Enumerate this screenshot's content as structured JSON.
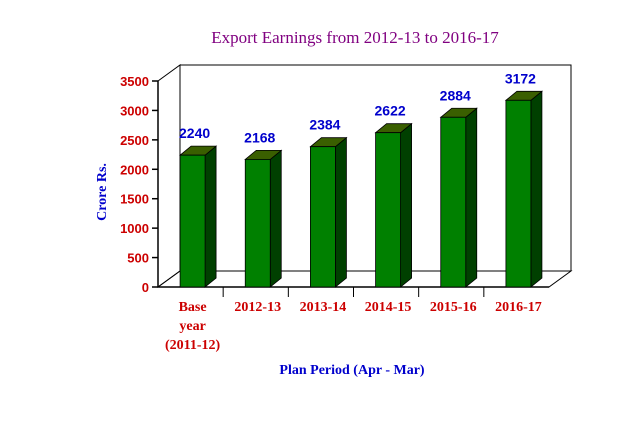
{
  "chart_data": {
    "type": "bar",
    "title": "Export Earnings from 2012-13 to 2016-17",
    "xlabel": "Plan Period (Apr - Mar)",
    "ylabel": "Crore Rs.",
    "ylim": [
      0,
      3500
    ],
    "yticks": [
      "0",
      "500",
      "1000",
      "1500",
      "2000",
      "2500",
      "3000",
      "3500"
    ],
    "categories": [
      [
        "Base",
        "year",
        "(2011-12)"
      ],
      [
        "2012-13"
      ],
      [
        "2013-14"
      ],
      [
        "2014-15"
      ],
      [
        "2015-16"
      ],
      [
        "2016-17"
      ]
    ],
    "values": [
      2240,
      2168,
      2384,
      2622,
      2884,
      3172
    ],
    "data_labels": [
      "2240",
      "2168",
      "2384",
      "2622",
      "2884",
      "3172"
    ],
    "grid": false,
    "legend": "none",
    "colors": {
      "bar_front": "#008000",
      "bar_side": "#004000",
      "bar_top": "#3a5f00",
      "title": "#800080",
      "axis_title": "#0000cc",
      "tick_labels": "#cc0000",
      "data_labels": "#0000cc",
      "axes": "#000000"
    }
  }
}
